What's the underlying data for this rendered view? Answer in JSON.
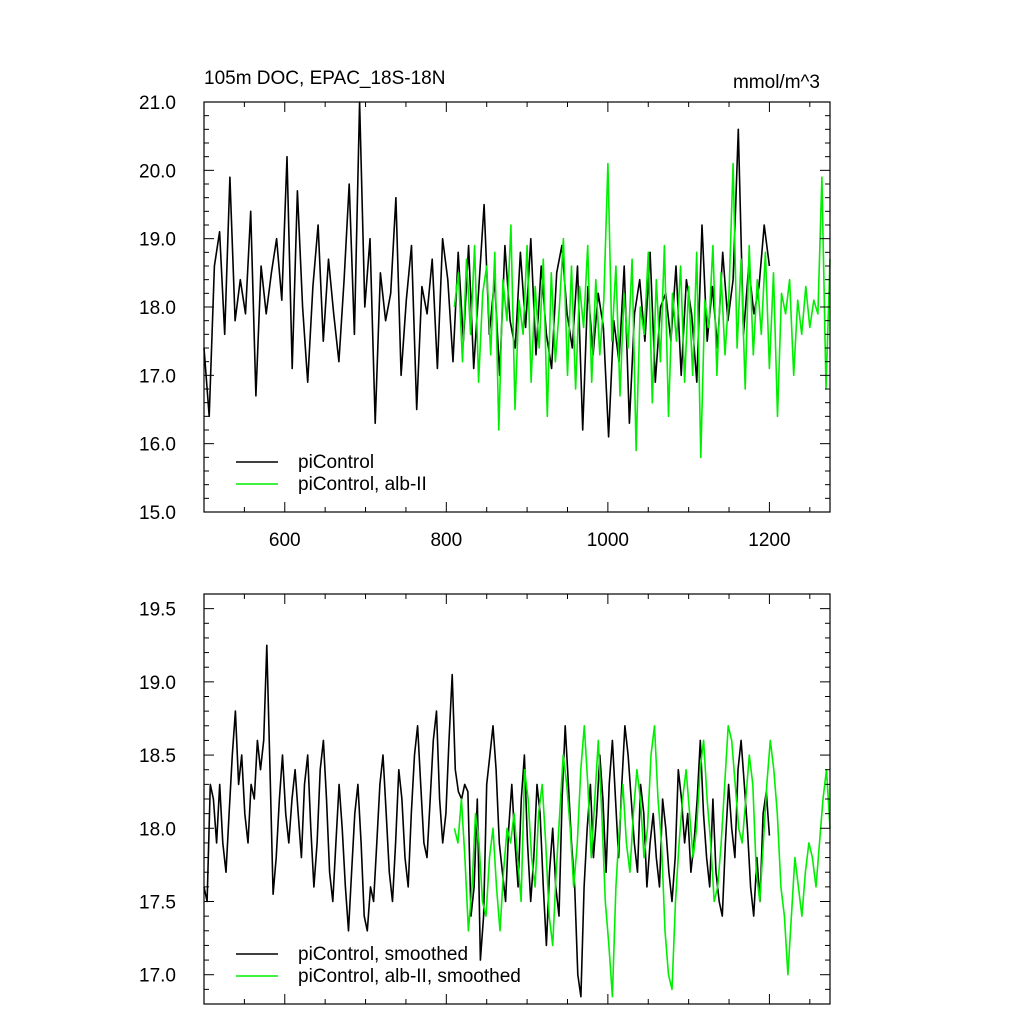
{
  "chart_data": [
    {
      "type": "line",
      "title": "105m DOC, EPAC_18S-18N",
      "units": "mmol/m^3",
      "xlim": [
        500,
        1275
      ],
      "ylim": [
        15.0,
        21.0
      ],
      "xticks": [
        600,
        800,
        1000,
        1200
      ],
      "xtick_labels": [
        "600",
        "800",
        "1000",
        "1200"
      ],
      "yticks": [
        15.0,
        16.0,
        17.0,
        18.0,
        19.0,
        20.0,
        21.0
      ],
      "ytick_labels": [
        "15.0",
        "16.0",
        "17.0",
        "18.0",
        "19.0",
        "20.0",
        "21.0"
      ],
      "grid": false,
      "legend_position": "bottom-left",
      "series": [
        {
          "name": "piControl",
          "color": "#000000",
          "x_start": 500,
          "x_end": 1200,
          "values": [
            17.4,
            16.4,
            18.6,
            19.1,
            17.6,
            19.9,
            17.8,
            18.4,
            17.9,
            19.4,
            16.7,
            18.6,
            17.9,
            18.5,
            19.0,
            18.1,
            20.2,
            17.1,
            19.7,
            18.0,
            16.9,
            18.3,
            19.2,
            17.5,
            18.7,
            17.9,
            17.2,
            18.4,
            19.8,
            17.6,
            21.0,
            18.0,
            19.0,
            16.3,
            18.5,
            17.8,
            18.2,
            19.6,
            17.0,
            18.1,
            18.9,
            16.5,
            18.3,
            17.9,
            18.7,
            17.1,
            19.0,
            18.4,
            17.2,
            18.8,
            17.5,
            18.9,
            17.1,
            18.3,
            19.5,
            17.6,
            18.4,
            17.0,
            18.9,
            17.8,
            17.4,
            18.8,
            17.7,
            19.0,
            17.3,
            18.6,
            17.6,
            17.1,
            18.5,
            18.9,
            17.9,
            17.4,
            18.6,
            16.2,
            18.3,
            17.3,
            18.2,
            17.7,
            16.1,
            17.8,
            17.2,
            18.6,
            16.3,
            17.9,
            18.4,
            17.5,
            18.8,
            16.9,
            18.0,
            18.2,
            17.5,
            18.6,
            17.0,
            18.4,
            17.9,
            16.9,
            19.2,
            17.5,
            18.3,
            17.4,
            18.8,
            17.8,
            18.4,
            20.6,
            17.6,
            18.6,
            17.9,
            18.3,
            19.2,
            18.6
          ],
          "values_note_removed": true
        },
        {
          "name": "piControl, alb-II",
          "color": "#00ee00",
          "x_start": 810,
          "x_end": 1275,
          "values": [
            18.0,
            18.5,
            17.2,
            18.7,
            17.6,
            18.9,
            16.9,
            18.2,
            18.6,
            17.3,
            18.8,
            16.2,
            18.4,
            17.8,
            19.2,
            16.5,
            18.1,
            17.6,
            18.9,
            16.9,
            18.3,
            17.4,
            18.7,
            16.4,
            18.5,
            17.2,
            18.0,
            19.0,
            17.0,
            18.6,
            16.8,
            18.3,
            17.7,
            18.9,
            16.9,
            18.4,
            17.3,
            18.1,
            20.1,
            17.5,
            18.6,
            16.7,
            18.2,
            17.4,
            18.7,
            15.9,
            18.0,
            17.6,
            18.8,
            16.6,
            18.4,
            17.2,
            18.9,
            16.4,
            18.2,
            17.5,
            18.6,
            16.9,
            18.3,
            17.0,
            18.8,
            15.8,
            18.1,
            17.7,
            18.9,
            17.0,
            18.5,
            17.3,
            18.2,
            20.1,
            17.4,
            18.7,
            16.8,
            18.9,
            17.3,
            18.4,
            17.6,
            18.8,
            17.1,
            18.5,
            16.4,
            18.2,
            17.9,
            18.4,
            17.0,
            18.1,
            17.6,
            18.3,
            17.7,
            18.1,
            17.9,
            19.9,
            16.8,
            18.7
          ]
        }
      ]
    },
    {
      "type": "line",
      "xlim": [
        500,
        1275
      ],
      "ylim": [
        16.8,
        19.6
      ],
      "xticks": [
        600,
        800,
        1000,
        1200
      ],
      "yticks": [
        17.0,
        17.5,
        18.0,
        18.5,
        19.0,
        19.5
      ],
      "ytick_labels": [
        "17.0",
        "17.5",
        "18.0",
        "18.5",
        "19.0",
        "19.5"
      ],
      "grid": false,
      "legend_position": "bottom-left",
      "series": [
        {
          "name": "piControl, smoothed",
          "color": "#000000",
          "x_start": 500,
          "x_end": 1200,
          "values": [
            17.6,
            17.5,
            18.3,
            18.2,
            17.9,
            18.3,
            17.9,
            17.7,
            18.1,
            18.5,
            18.8,
            18.3,
            18.5,
            18.1,
            17.9,
            18.3,
            18.2,
            18.6,
            18.4,
            18.6,
            19.25,
            18.4,
            17.55,
            17.8,
            18.2,
            18.5,
            18.1,
            17.9,
            18.2,
            18.4,
            18.1,
            17.8,
            18.3,
            18.5,
            18.0,
            17.6,
            17.9,
            18.4,
            18.6,
            18.2,
            17.7,
            17.5,
            17.9,
            18.3,
            18.0,
            17.6,
            17.3,
            17.7,
            18.1,
            18.3,
            17.9,
            17.4,
            17.3,
            17.6,
            17.5,
            17.9,
            18.3,
            18.5,
            18.1,
            17.7,
            17.5,
            17.9,
            18.4,
            18.2,
            17.8,
            17.6,
            18.1,
            18.5,
            18.7,
            18.3,
            17.9,
            17.8,
            18.2,
            18.6,
            18.8,
            18.2,
            17.9,
            18.1,
            18.6,
            19.05,
            18.4,
            18.25,
            18.2,
            18.3
          ],
          "segment2": [
            18.25,
            17.4,
            17.6,
            18.2,
            17.1,
            17.4,
            18.3,
            18.5,
            18.7,
            18.4,
            17.9,
            17.7,
            17.5,
            18.0,
            18.3,
            17.9,
            17.6,
            18.2,
            18.5,
            17.9,
            17.5,
            17.8,
            18.3,
            18.1,
            17.6,
            17.2,
            17.7,
            18.0,
            17.6,
            17.4,
            18.2,
            18.7,
            18.3,
            17.9,
            17.6,
            17.0,
            16.85,
            17.6,
            18.0,
            18.3,
            17.8,
            18.1,
            18.5,
            18.2,
            17.7,
            18.3,
            18.6,
            18.2,
            17.8,
            18.3,
            18.7,
            18.5,
            18.2,
            17.9,
            17.7,
            18.3,
            18.1,
            17.6,
            17.9,
            18.1,
            17.8,
            17.6,
            18.2,
            18.0,
            17.7,
            17.5,
            17.8,
            18.4,
            18.2,
            17.9,
            18.1,
            17.7,
            17.9,
            18.2,
            18.6,
            18.1,
            17.8,
            17.6,
            18.2,
            17.7,
            17.5,
            17.4,
            17.9,
            18.3,
            18.0,
            17.8,
            18.4,
            18.6,
            18.3,
            18.0,
            17.6,
            17.4,
            17.8,
            17.5,
            18.1,
            18.25,
            17.95
          ]
        },
        {
          "name": "piControl, alb-II, smoothed",
          "color": "#00ee00",
          "x_start": 810,
          "x_end": 1275,
          "values": [
            18.0,
            17.9,
            18.2,
            17.8,
            17.3,
            17.6,
            18.1,
            17.9,
            17.5,
            17.4,
            17.8,
            18.0,
            17.6,
            17.3,
            17.7,
            18.0,
            17.9,
            18.1,
            17.8,
            17.5,
            18.4,
            18.2,
            17.8,
            17.6,
            18.1,
            18.3,
            17.9,
            17.4,
            17.2,
            17.7,
            18.1,
            18.5,
            18.3,
            18.0,
            17.6,
            17.9,
            18.4,
            18.7,
            18.3,
            17.8,
            18.2,
            18.6,
            18.1,
            17.5,
            17.2,
            16.85,
            17.6,
            18.0,
            18.3,
            17.9,
            17.7,
            18.1,
            18.4,
            18.2,
            17.8,
            18.0,
            18.5,
            18.7,
            18.2,
            17.9,
            17.3,
            17.0,
            16.9,
            17.5,
            17.9,
            18.2,
            18.4,
            18.1,
            17.8,
            18.0,
            18.4,
            18.6,
            18.2,
            17.9,
            17.5,
            17.6,
            17.9,
            18.3,
            18.7,
            18.6,
            18.3,
            18.0,
            17.9,
            18.2,
            18.5,
            18.3,
            17.7,
            17.5,
            17.9,
            18.3,
            18.6,
            18.4,
            18.1,
            17.6,
            17.4,
            17.0,
            17.4,
            17.8,
            17.6,
            17.4,
            17.7,
            17.9,
            17.8,
            17.6,
            17.9,
            18.2,
            18.4,
            18.0
          ]
        }
      ]
    }
  ]
}
